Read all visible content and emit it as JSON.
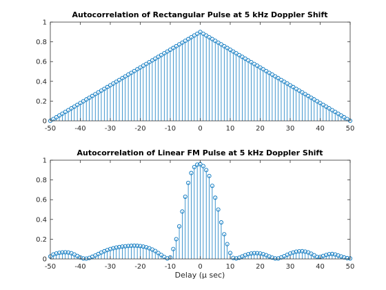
{
  "colors": {
    "series": "#0072bd",
    "axis": "#262626"
  },
  "chart_data": [
    {
      "type": "stem",
      "title": "Autocorrelation of Rectangular Pulse at 5 kHz Doppler Shift",
      "xlabel": "",
      "ylabel": "",
      "xlim": [
        -50,
        50
      ],
      "ylim": [
        0,
        1
      ],
      "xticks": [
        -50,
        -40,
        -30,
        -20,
        -10,
        0,
        10,
        20,
        30,
        40,
        50
      ],
      "yticks": [
        0,
        0.2,
        0.4,
        0.6,
        0.8,
        1
      ],
      "ytick_labels": [
        "0",
        "0.2",
        "0.4",
        "0.6",
        "0.8",
        "1"
      ],
      "grid": false,
      "marker": "circle",
      "series": [
        {
          "x": [
            -50,
            -49,
            -48,
            -47,
            -46,
            -45,
            -44,
            -43,
            -42,
            -41,
            -40,
            -39,
            -38,
            -37,
            -36,
            -35,
            -34,
            -33,
            -32,
            -31,
            -30,
            -29,
            -28,
            -27,
            -26,
            -25,
            -24,
            -23,
            -22,
            -21,
            -20,
            -19,
            -18,
            -17,
            -16,
            -15,
            -14,
            -13,
            -12,
            -11,
            -10,
            -9,
            -8,
            -7,
            -6,
            -5,
            -4,
            -3,
            -2,
            -1,
            0,
            1,
            2,
            3,
            4,
            5,
            6,
            7,
            8,
            9,
            10,
            11,
            12,
            13,
            14,
            15,
            16,
            17,
            18,
            19,
            20,
            21,
            22,
            23,
            24,
            25,
            26,
            27,
            28,
            29,
            30,
            31,
            32,
            33,
            34,
            35,
            36,
            37,
            38,
            39,
            40,
            41,
            42,
            43,
            44,
            45,
            46,
            47,
            48,
            49,
            50
          ],
          "y": [
            0.0,
            0.018,
            0.036,
            0.054,
            0.072,
            0.09,
            0.108,
            0.126,
            0.144,
            0.162,
            0.18,
            0.198,
            0.216,
            0.234,
            0.252,
            0.27,
            0.288,
            0.306,
            0.324,
            0.342,
            0.36,
            0.378,
            0.396,
            0.414,
            0.432,
            0.45,
            0.468,
            0.486,
            0.504,
            0.522,
            0.54,
            0.558,
            0.576,
            0.594,
            0.612,
            0.63,
            0.648,
            0.666,
            0.684,
            0.702,
            0.72,
            0.738,
            0.756,
            0.774,
            0.792,
            0.81,
            0.828,
            0.846,
            0.864,
            0.882,
            0.9,
            0.882,
            0.864,
            0.846,
            0.828,
            0.81,
            0.792,
            0.774,
            0.756,
            0.738,
            0.72,
            0.702,
            0.684,
            0.666,
            0.648,
            0.63,
            0.612,
            0.594,
            0.576,
            0.558,
            0.54,
            0.522,
            0.504,
            0.486,
            0.468,
            0.45,
            0.432,
            0.414,
            0.396,
            0.378,
            0.36,
            0.342,
            0.324,
            0.306,
            0.288,
            0.27,
            0.252,
            0.234,
            0.216,
            0.198,
            0.18,
            0.162,
            0.144,
            0.126,
            0.108,
            0.09,
            0.072,
            0.054,
            0.036,
            0.018,
            0.0
          ]
        }
      ]
    },
    {
      "type": "stem",
      "title": "Autocorrelation of Linear FM Pulse at 5 kHz Doppler Shift",
      "xlabel": "Delay (μ sec)",
      "ylabel": "",
      "xlim": [
        -50,
        50
      ],
      "ylim": [
        0,
        1
      ],
      "xticks": [
        -50,
        -40,
        -30,
        -20,
        -10,
        0,
        10,
        20,
        30,
        40,
        50
      ],
      "yticks": [
        0,
        0.2,
        0.4,
        0.6,
        0.8,
        1
      ],
      "ytick_labels": [
        "0",
        "0.2",
        "0.4",
        "0.6",
        "0.8",
        "1"
      ],
      "grid": false,
      "marker": "circle",
      "series": [
        {
          "x": [
            -50,
            -49,
            -48,
            -47,
            -46,
            -45,
            -44,
            -43,
            -42,
            -41,
            -40,
            -39,
            -38,
            -37,
            -36,
            -35,
            -34,
            -33,
            -32,
            -31,
            -30,
            -29,
            -28,
            -27,
            -26,
            -25,
            -24,
            -23,
            -22,
            -21,
            -20,
            -19,
            -18,
            -17,
            -16,
            -15,
            -14,
            -13,
            -12,
            -11,
            -10,
            -9,
            -8,
            -7,
            -6,
            -5,
            -4,
            -3,
            -2,
            -1,
            0,
            1,
            2,
            3,
            4,
            5,
            6,
            7,
            8,
            9,
            10,
            11,
            12,
            13,
            14,
            15,
            16,
            17,
            18,
            19,
            20,
            21,
            22,
            23,
            24,
            25,
            26,
            27,
            28,
            29,
            30,
            31,
            32,
            33,
            34,
            35,
            36,
            37,
            38,
            39,
            40,
            41,
            42,
            43,
            44,
            45,
            46,
            47,
            48,
            49,
            50
          ],
          "y": [
            0.025,
            0.045,
            0.055,
            0.062,
            0.066,
            0.067,
            0.065,
            0.058,
            0.045,
            0.03,
            0.015,
            0.005,
            0.003,
            0.01,
            0.022,
            0.035,
            0.05,
            0.065,
            0.078,
            0.09,
            0.1,
            0.108,
            0.115,
            0.12,
            0.125,
            0.128,
            0.131,
            0.133,
            0.134,
            0.133,
            0.13,
            0.125,
            0.118,
            0.108,
            0.095,
            0.08,
            0.06,
            0.04,
            0.02,
            0.005,
            0.015,
            0.1,
            0.2,
            0.33,
            0.48,
            0.63,
            0.77,
            0.87,
            0.93,
            0.955,
            0.96,
            0.94,
            0.9,
            0.84,
            0.74,
            0.62,
            0.5,
            0.37,
            0.25,
            0.15,
            0.06,
            0.01,
            0.005,
            0.012,
            0.025,
            0.038,
            0.048,
            0.055,
            0.058,
            0.058,
            0.055,
            0.048,
            0.038,
            0.025,
            0.013,
            0.005,
            0.005,
            0.015,
            0.028,
            0.042,
            0.055,
            0.065,
            0.073,
            0.077,
            0.078,
            0.074,
            0.066,
            0.053,
            0.037,
            0.02,
            0.02,
            0.03,
            0.04,
            0.048,
            0.05,
            0.045,
            0.035,
            0.025,
            0.015,
            0.008,
            0.005
          ]
        }
      ]
    }
  ]
}
